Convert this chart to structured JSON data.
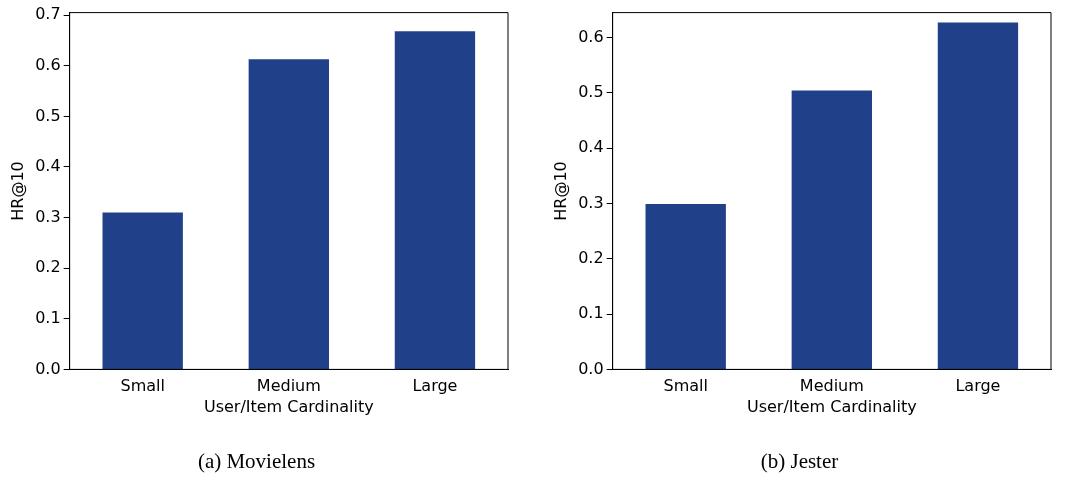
{
  "chart_data": [
    {
      "type": "bar",
      "title": "(a) Movielens",
      "xlabel": "User/Item Cardinality",
      "ylabel": "HR@10",
      "categories": [
        "Small",
        "Medium",
        "Large"
      ],
      "values": [
        0.31,
        0.613,
        0.668
      ],
      "color": "#20418a",
      "ylim": [
        0,
        0.705
      ],
      "yticks": [
        {
          "value": 0,
          "label": "0.0"
        },
        0.1,
        0.2,
        0.3,
        0.4,
        0.5,
        0.6,
        0.7
      ],
      "grid": false,
      "legend": false
    },
    {
      "type": "bar",
      "title": "(b) Jester",
      "xlabel": "User/Item Cardinality",
      "ylabel": "HR@10",
      "categories": [
        "Small",
        "Medium",
        "Large"
      ],
      "values": [
        0.299,
        0.504,
        0.627
      ],
      "color": "#20418a",
      "ylim": [
        0,
        0.645
      ],
      "yticks": [
        {
          "value": 0,
          "label": "0.0"
        },
        0.1,
        0.2,
        0.3,
        0.4,
        0.5,
        0.6
      ],
      "grid": false,
      "legend": false
    }
  ]
}
